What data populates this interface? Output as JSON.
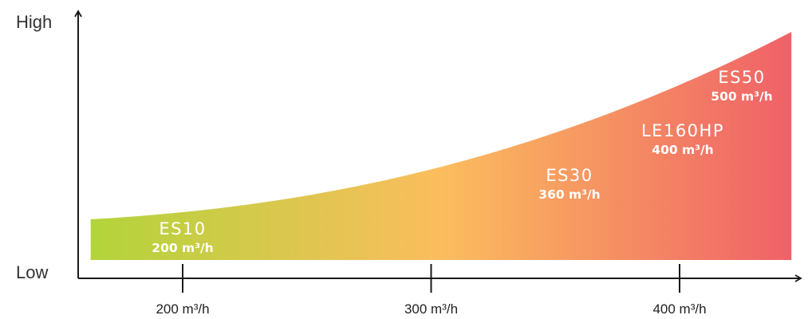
{
  "chart_data": {
    "type": "area",
    "y_axis": {
      "high_label": "High",
      "low_label": "Low"
    },
    "x_ticks": [
      {
        "value": 200,
        "label": "200 m³/h"
      },
      {
        "value": 300,
        "label": "300 m³/h"
      },
      {
        "value": 400,
        "label": "400 m³/h"
      }
    ],
    "x_range": [
      163,
      445
    ],
    "gradient_colors": [
      "#b2d43a",
      "#fbbd5e",
      "#ef6168"
    ],
    "axis_color": "#1a1a1a",
    "models": [
      {
        "name": "ES10",
        "flow_label": "200 m³/h",
        "flow": 200
      },
      {
        "name": "ES30",
        "flow_label": "360 m³/h",
        "flow": 360
      },
      {
        "name": "LE160HP",
        "flow_label": "400 m³/h",
        "flow": 400
      },
      {
        "name": "ES50",
        "flow_label": "500 m³/h",
        "flow": 500
      }
    ]
  }
}
